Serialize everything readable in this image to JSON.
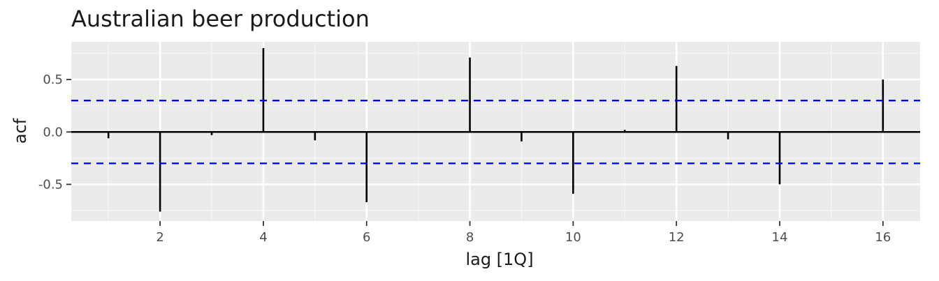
{
  "chart_data": {
    "type": "bar",
    "title": "Australian beer production",
    "xlabel": "lag [1Q]",
    "ylabel": "acf",
    "xlim": [
      0.28,
      16.72
    ],
    "ylim": [
      -0.85,
      0.86
    ],
    "x_ticks": [
      2,
      4,
      6,
      8,
      10,
      12,
      14,
      16
    ],
    "x_tick_labels": [
      "2",
      "4",
      "6",
      "8",
      "10",
      "12",
      "14",
      "16"
    ],
    "y_ticks": [
      -0.5,
      0.0,
      0.5
    ],
    "y_tick_labels": [
      "-0.5",
      "0.0",
      "0.5"
    ],
    "x": [
      1,
      2,
      3,
      4,
      5,
      6,
      7,
      8,
      9,
      10,
      11,
      12,
      13,
      14,
      15,
      16
    ],
    "values": [
      -0.06,
      -0.76,
      -0.03,
      0.8,
      -0.08,
      -0.67,
      0.0,
      0.71,
      -0.09,
      -0.59,
      0.02,
      0.63,
      -0.07,
      -0.5,
      0.0,
      0.5
    ],
    "confidence_limits": [
      0.3,
      -0.3
    ],
    "colors": {
      "panel": "#ebebeb",
      "grid_major": "#ffffff",
      "grid_minor": "#f5f5f5",
      "bars": "#000000",
      "confidence": "#0000ff"
    },
    "grid": true,
    "legend": "none"
  }
}
